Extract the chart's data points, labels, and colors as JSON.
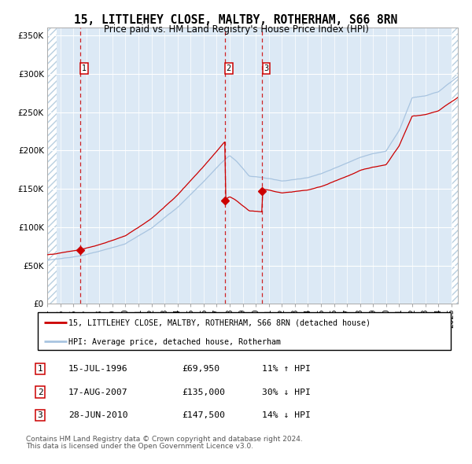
{
  "title": "15, LITTLEHEY CLOSE, MALTBY, ROTHERHAM, S66 8RN",
  "subtitle": "Price paid vs. HM Land Registry's House Price Index (HPI)",
  "hpi_color": "#a8c4e0",
  "price_color": "#cc0000",
  "plot_bg_color": "#dce9f5",
  "ylim": [
    0,
    360000
  ],
  "yticks": [
    0,
    50000,
    100000,
    150000,
    200000,
    250000,
    300000,
    350000
  ],
  "ytick_labels": [
    "£0",
    "£50K",
    "£100K",
    "£150K",
    "£200K",
    "£250K",
    "£300K",
    "£350K"
  ],
  "transactions": [
    {
      "date_num": 1996.54,
      "price": 69950,
      "label": "1",
      "date_str": "15-JUL-1996",
      "amount": "£69,950",
      "hpi_rel": "11% ↑ HPI"
    },
    {
      "date_num": 2007.62,
      "price": 135000,
      "label": "2",
      "date_str": "17-AUG-2007",
      "amount": "£135,000",
      "hpi_rel": "30% ↓ HPI"
    },
    {
      "date_num": 2010.49,
      "price": 147500,
      "label": "3",
      "date_str": "28-JUN-2010",
      "amount": "£147,500",
      "hpi_rel": "14% ↓ HPI"
    }
  ],
  "legend_line1": "15, LITTLEHEY CLOSE, MALTBY, ROTHERHAM, S66 8RN (detached house)",
  "legend_line2": "HPI: Average price, detached house, Rotherham",
  "footer1": "Contains HM Land Registry data © Crown copyright and database right 2024.",
  "footer2": "This data is licensed under the Open Government Licence v3.0.",
  "xmin": 1994.0,
  "xmax": 2025.5
}
